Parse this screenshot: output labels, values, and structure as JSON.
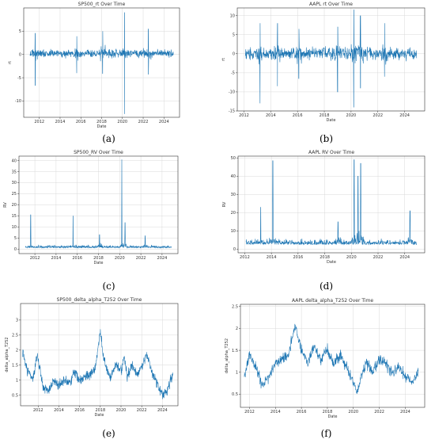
{
  "style": {
    "line_color": "#1f77b4",
    "grid_color": "#d9d9d9"
  },
  "chart_data": [
    {
      "type": "line",
      "caption": "(a)",
      "title": "SP500_rt Over Time",
      "xlabel": "Date",
      "ylabel": "rt",
      "xlim": [
        2010.5,
        2025.5
      ],
      "ylim": [
        -13.5,
        10
      ],
      "xticks": [
        2012,
        2014,
        2016,
        2018,
        2020,
        2022,
        2024
      ],
      "yticks": [
        -10,
        -5,
        0,
        5
      ],
      "grid": true,
      "series": [
        {
          "kind": "returns",
          "baseline": 0.2,
          "amplitude": 1.1,
          "spikes": [
            {
              "x": 2011.6,
              "lo": -6.7,
              "hi": 4.6
            },
            {
              "x": 2015.6,
              "lo": -4.0,
              "hi": 3.9
            },
            {
              "x": 2018.1,
              "lo": -4.1,
              "hi": 5.0
            },
            {
              "x": 2020.2,
              "lo": -12.8,
              "hi": 9.0
            },
            {
              "x": 2022.5,
              "lo": -4.3,
              "hi": 5.5
            }
          ]
        }
      ]
    },
    {
      "type": "line",
      "caption": "(b)",
      "title": "AAPL rt Over Time",
      "xlabel": "Date",
      "ylabel": "rt",
      "xlim": [
        2011.5,
        2025.5
      ],
      "ylim": [
        -15,
        12
      ],
      "xticks": [
        2012,
        2014,
        2016,
        2018,
        2020,
        2022,
        2024
      ],
      "yticks": [
        -15,
        -10,
        -5,
        0,
        5,
        10
      ],
      "grid": true,
      "series": [
        {
          "kind": "returns",
          "baseline": 0.0,
          "amplitude": 2.0,
          "spikes": [
            {
              "x": 2013.2,
              "lo": -13.0,
              "hi": 8.0
            },
            {
              "x": 2014.5,
              "lo": -8.5,
              "hi": 8.0
            },
            {
              "x": 2016.1,
              "lo": -6.5,
              "hi": 6.5
            },
            {
              "x": 2019.0,
              "lo": -10.0,
              "hi": 7.0
            },
            {
              "x": 2020.2,
              "lo": -14.0,
              "hi": 11.5
            },
            {
              "x": 2020.7,
              "lo": -9.0,
              "hi": 10.0
            },
            {
              "x": 2022.5,
              "lo": -6.0,
              "hi": 8.0
            }
          ]
        }
      ]
    },
    {
      "type": "line",
      "caption": "(c)",
      "title": "SP500_RV Over Time",
      "xlabel": "Date",
      "ylabel": "RV",
      "xlim": [
        2010.5,
        2025.5
      ],
      "ylim": [
        -2,
        42
      ],
      "xticks": [
        2012,
        2014,
        2016,
        2018,
        2020,
        2022,
        2024
      ],
      "yticks": [
        0,
        5,
        10,
        15,
        20,
        25,
        30,
        35,
        40
      ],
      "grid": true,
      "series": [
        {
          "kind": "rv",
          "baseline": 0.6,
          "amplitude": 1.0,
          "spikes": [
            {
              "x": 2011.6,
              "hi": 15.5
            },
            {
              "x": 2015.6,
              "hi": 15.0
            },
            {
              "x": 2018.1,
              "hi": 6.5
            },
            {
              "x": 2020.2,
              "hi": 40.5
            },
            {
              "x": 2020.5,
              "hi": 12.0
            },
            {
              "x": 2022.4,
              "hi": 6.0
            }
          ]
        }
      ]
    },
    {
      "type": "line",
      "caption": "(d)",
      "title": "AAPL RV Over Time",
      "xlabel": "Date",
      "ylabel": "RV",
      "xlim": [
        2011.5,
        2025.5
      ],
      "ylim": [
        -2,
        51
      ],
      "xticks": [
        2012,
        2014,
        2016,
        2018,
        2020,
        2022,
        2024
      ],
      "yticks": [
        0,
        10,
        20,
        30,
        40,
        50
      ],
      "grid": true,
      "series": [
        {
          "kind": "rv",
          "baseline": 2.5,
          "amplitude": 2.5,
          "spikes": [
            {
              "x": 2013.2,
              "hi": 23.0
            },
            {
              "x": 2014.1,
              "hi": 48.5
            },
            {
              "x": 2019.0,
              "hi": 15.0
            },
            {
              "x": 2020.2,
              "hi": 49.0
            },
            {
              "x": 2020.5,
              "hi": 40.0
            },
            {
              "x": 2020.7,
              "hi": 47.0
            },
            {
              "x": 2024.4,
              "hi": 21.0
            }
          ]
        }
      ]
    },
    {
      "type": "line",
      "caption": "(e)",
      "title": "SP500_delta_alpha_T252 Over Time",
      "xlabel": "Date",
      "ylabel": "delta_alpha_T252",
      "xlim": [
        2010.3,
        2025.5
      ],
      "ylim": [
        0.15,
        3.55
      ],
      "xticks": [
        2012,
        2014,
        2016,
        2018,
        2020,
        2022,
        2024
      ],
      "yticks": [
        0.5,
        1.0,
        1.5,
        2.0,
        2.5,
        3.0
      ],
      "grid": true,
      "series": [
        {
          "kind": "level",
          "noise": 0.12,
          "x": [
            2010.5,
            2011.0,
            2011.5,
            2011.9,
            2012.5,
            2013.0,
            2013.5,
            2014.0,
            2014.5,
            2015.0,
            2015.5,
            2016.0,
            2016.5,
            2017.0,
            2017.5,
            2018.0,
            2018.3,
            2018.7,
            2019.0,
            2019.5,
            2020.0,
            2020.3,
            2020.6,
            2021.0,
            2021.5,
            2022.0,
            2022.5,
            2023.0,
            2023.5,
            2024.0,
            2024.5,
            2025.0
          ],
          "y": [
            1.9,
            1.3,
            1.0,
            1.9,
            0.7,
            0.6,
            1.0,
            0.8,
            1.0,
            0.9,
            1.3,
            1.0,
            1.1,
            1.2,
            1.4,
            2.6,
            1.8,
            1.3,
            1.1,
            1.5,
            1.3,
            1.8,
            1.1,
            1.5,
            1.2,
            1.4,
            1.9,
            1.2,
            0.9,
            0.5,
            0.7,
            1.2
          ]
        }
      ]
    },
    {
      "type": "line",
      "caption": "(f)",
      "title": "AAPL delta_alpha_T252 Over Time",
      "xlabel": "Date",
      "ylabel": "delta_alpha_T252",
      "xlim": [
        2011.3,
        2025.5
      ],
      "ylim": [
        0.2,
        2.55
      ],
      "xticks": [
        2012,
        2014,
        2016,
        2018,
        2020,
        2022,
        2024
      ],
      "yticks": [
        0.5,
        1.0,
        1.5,
        2.0,
        2.5
      ],
      "grid": true,
      "series": [
        {
          "kind": "level",
          "noise": 0.09,
          "x": [
            2011.6,
            2012.0,
            2012.5,
            2013.0,
            2013.5,
            2014.0,
            2014.5,
            2015.0,
            2015.5,
            2016.0,
            2016.5,
            2017.0,
            2017.5,
            2018.0,
            2018.5,
            2019.0,
            2019.5,
            2020.0,
            2020.3,
            2020.6,
            2021.0,
            2021.5,
            2022.0,
            2022.5,
            2023.0,
            2023.5,
            2024.0,
            2024.5,
            2025.0
          ],
          "y": [
            0.9,
            1.4,
            1.1,
            0.7,
            0.9,
            1.2,
            1.3,
            1.4,
            2.1,
            1.5,
            1.2,
            1.6,
            1.3,
            1.5,
            1.2,
            1.4,
            1.1,
            0.8,
            0.5,
            0.9,
            1.2,
            1.0,
            1.3,
            1.2,
            1.0,
            1.1,
            0.9,
            0.8,
            1.0
          ]
        }
      ]
    }
  ]
}
